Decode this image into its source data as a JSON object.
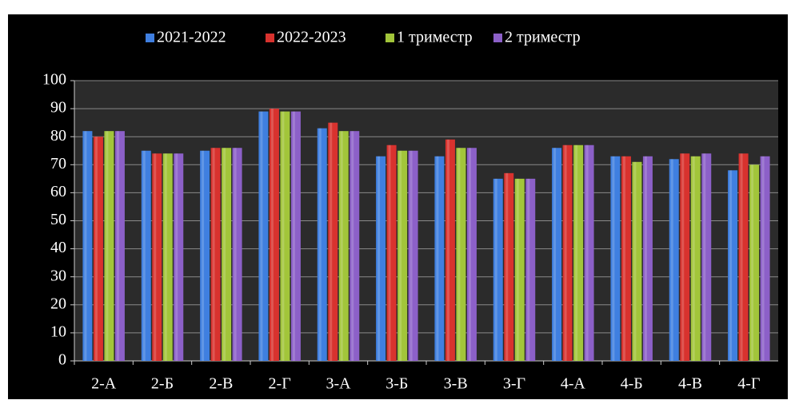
{
  "chart_data": {
    "type": "bar",
    "categories": [
      "2-А",
      "2-Б",
      "2-В",
      "2-Г",
      "3-А",
      "3-Б",
      "3-В",
      "3-Г",
      "4-А",
      "4-Б",
      "4-В",
      "4-Г"
    ],
    "series": [
      {
        "name": "2021-2022",
        "color": "#3f7fe0",
        "values": [
          82,
          75,
          75,
          89,
          83,
          73,
          73,
          65,
          76,
          73,
          72,
          68
        ]
      },
      {
        "name": "2022-2023",
        "color": "#d8322e",
        "values": [
          80,
          74,
          76,
          90,
          85,
          77,
          79,
          67,
          77,
          73,
          74,
          74
        ]
      },
      {
        "name": "1 триместр",
        "color": "#a2c53a",
        "values": [
          82,
          74,
          76,
          89,
          82,
          75,
          76,
          65,
          77,
          71,
          73,
          70
        ]
      },
      {
        "name": "2 триместр",
        "color": "#8c60c8",
        "values": [
          82,
          74,
          76,
          89,
          82,
          75,
          76,
          65,
          77,
          73,
          74,
          73
        ]
      }
    ],
    "ylim": [
      0,
      100
    ],
    "yticks": [
      0,
      10,
      20,
      30,
      40,
      50,
      60,
      70,
      80,
      90,
      100
    ],
    "grid": true,
    "legend": "top"
  }
}
